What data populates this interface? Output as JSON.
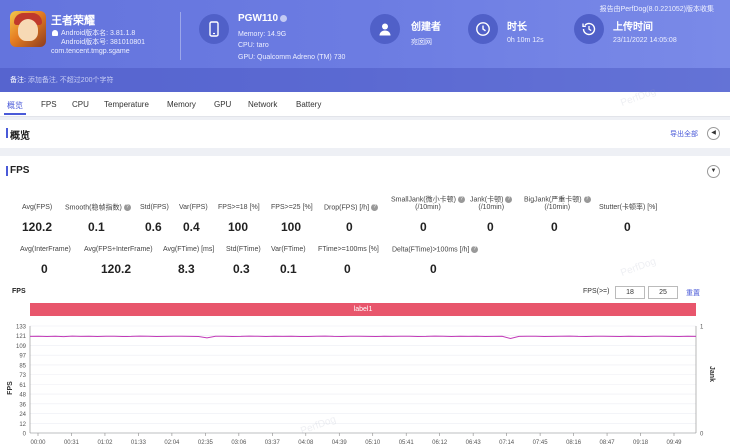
{
  "header": {
    "version_text": "报告由PerfDog(8.0.221052)版本收集",
    "app": {
      "name": "王者荣耀",
      "version": "Android版本名: 3.81.1.8",
      "build": "Android版本号: 381010801",
      "package": "com.tencent.tmgp.sgame",
      "icon": "game-avatar"
    },
    "device": {
      "model": "PGW110",
      "memory": "Memory: 14.9G",
      "cpu": "CPU: taro",
      "gpu": "GPU: Qualcomm Adreno (TM) 730",
      "icon": "phone-icon"
    },
    "creator": {
      "title": "创建者",
      "value": "宛囡网",
      "icon": "user-icon"
    },
    "duration": {
      "title": "时长",
      "value": "0h 10m 12s",
      "icon": "clock-icon"
    },
    "upload": {
      "title": "上传时间",
      "value": "23/11/2022 14:05:08",
      "icon": "history-icon"
    },
    "notice_label": "备注:",
    "notice_placeholder": "添加备注, 不超过200个字符"
  },
  "tabs": [
    {
      "label": "概览",
      "active": true
    },
    {
      "label": "FPS"
    },
    {
      "label": "CPU"
    },
    {
      "label": "Temperature"
    },
    {
      "label": "Memory"
    },
    {
      "label": "GPU"
    },
    {
      "label": "Network"
    },
    {
      "label": "Battery"
    }
  ],
  "overview": {
    "title": "概览",
    "export_label": "导出全部",
    "collapse_icon": "chevron-left-icon"
  },
  "fps_section": {
    "title": "FPS",
    "collapse_icon": "chevron-down-icon",
    "row1": [
      {
        "label": "Avg(FPS)",
        "value": "120.2"
      },
      {
        "label": "Smooth(稳帧指数)",
        "value": "0.1",
        "help": true
      },
      {
        "label": "Std(FPS)",
        "value": "0.6"
      },
      {
        "label": "Var(FPS)",
        "value": "0.4"
      },
      {
        "label": "FPS>=18 [%]",
        "value": "100"
      },
      {
        "label": "FPS>=25 [%]",
        "value": "100"
      },
      {
        "label": "Drop(FPS) [/h]",
        "value": "0",
        "help": true
      },
      {
        "label": "SmallJank(微小卡顿)",
        "label2": "(/10min)",
        "value": "0",
        "help": true
      },
      {
        "label": "Jank(卡顿)",
        "label2": "(/10min)",
        "value": "0",
        "help": true
      },
      {
        "label": "BigJank(严重卡顿)",
        "label2": "(/10min)",
        "value": "0",
        "help": true
      },
      {
        "label": "Stutter(卡顿率) [%]",
        "value": "0",
        "help": true
      }
    ],
    "row2": [
      {
        "label": "Avg(InterFrame)",
        "value": "0"
      },
      {
        "label": "Avg(FPS+InterFrame)",
        "value": "120.2"
      },
      {
        "label": "Avg(FTime) [ms]",
        "value": "8.3"
      },
      {
        "label": "Std(FTime)",
        "value": "0.3"
      },
      {
        "label": "Var(FTime)",
        "value": "0.1"
      },
      {
        "label": "FTime>=100ms [%]",
        "value": "0"
      },
      {
        "label": "Delta(FTime)>100ms [/h]",
        "value": "0",
        "help": true
      }
    ]
  },
  "chart": {
    "title": "FPS",
    "threshold_label": "FPS(>=)",
    "threshold_1": "18",
    "threshold_2": "25",
    "reset_label": "重置",
    "band_label": "label1",
    "band_color": "#e8566c",
    "line_color": "#c23ab8"
  },
  "chart_data": {
    "type": "line",
    "title": "FPS",
    "ylabel": "FPS",
    "y2label": "Jank",
    "ylim": [
      0,
      133
    ],
    "y2lim": [
      0,
      1
    ],
    "yticks": [
      "133",
      "121",
      "109",
      "97",
      "85",
      "73",
      "61",
      "48",
      "36",
      "24",
      "12",
      "0"
    ],
    "y2ticks": [
      "1",
      "0"
    ],
    "xticks": [
      "00:00",
      "00:31",
      "01:02",
      "01:33",
      "02:04",
      "02:35",
      "03:06",
      "03:37",
      "04:08",
      "04:39",
      "05:10",
      "05:41",
      "06:12",
      "06:43",
      "07:14",
      "07:45",
      "08:16",
      "08:47",
      "09:18",
      "09:49"
    ],
    "series": [
      {
        "values": [
          120.1,
          120.3,
          120.0,
          120.2,
          119.8,
          120.4,
          120.1,
          120.2,
          120.0,
          120.3,
          120.2,
          119.9,
          120.1,
          120.4,
          120.2,
          120.0,
          120.1,
          120.3,
          120.2,
          120.1,
          119.9,
          118.2,
          120.2,
          120.3,
          120.0,
          120.1,
          120.4,
          120.2,
          120.0,
          120.2,
          120.1,
          120.3,
          120.0,
          119.9,
          120.2,
          120.4,
          120.1,
          120.0,
          120.2,
          120.3,
          120.1,
          120.0,
          120.2,
          120.1,
          120.3,
          120.2,
          119.9,
          120.1,
          120.4,
          120.2,
          120.0,
          120.2,
          120.1,
          120.3,
          120.0,
          120.1,
          120.2,
          117.5,
          120.1,
          120.3,
          120.2,
          120.0,
          120.1,
          120.2,
          120.4,
          120.1,
          120.0,
          120.2,
          120.3,
          120.1,
          120.0,
          120.2,
          120.1,
          119.9,
          120.2,
          120.3,
          120.1,
          120.0,
          120.2,
          120.1
        ]
      }
    ]
  }
}
